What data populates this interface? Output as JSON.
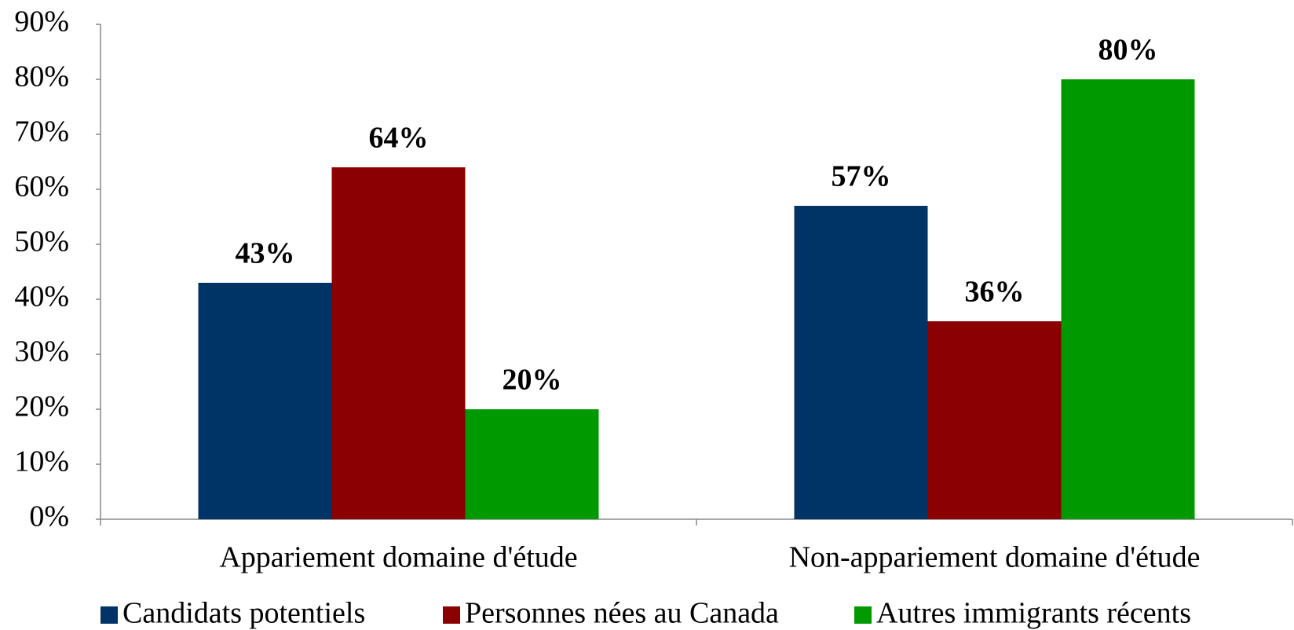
{
  "chart_data": {
    "type": "bar",
    "categories": [
      "Appariement domaine d'étude",
      "Non-appariement domaine d'étude"
    ],
    "series": [
      {
        "name": "Candidats potentiels",
        "color": "#003366",
        "values": [
          43,
          57
        ],
        "value_labels": [
          "43%",
          "57%"
        ]
      },
      {
        "name": "Personnes nées au Canada",
        "color": "#8b0000",
        "values": [
          64,
          36
        ],
        "value_labels": [
          "64%",
          "36%"
        ]
      },
      {
        "name": "Autres immigrants récents",
        "color": "#009900",
        "values": [
          20,
          80
        ],
        "value_labels": [
          "20%",
          "80%"
        ]
      }
    ],
    "ylim": [
      0,
      90
    ],
    "yticks": [
      {
        "value": 0,
        "label": "0%"
      },
      {
        "value": 10,
        "label": "10%"
      },
      {
        "value": 20,
        "label": "20%"
      },
      {
        "value": 30,
        "label": "30%"
      },
      {
        "value": 40,
        "label": "40%"
      },
      {
        "value": 50,
        "label": "50%"
      },
      {
        "value": 60,
        "label": "60%"
      },
      {
        "value": 70,
        "label": "70%"
      },
      {
        "value": 80,
        "label": "80%"
      },
      {
        "value": 90,
        "label": "90%"
      }
    ],
    "grid": false,
    "legend": "bottom"
  }
}
